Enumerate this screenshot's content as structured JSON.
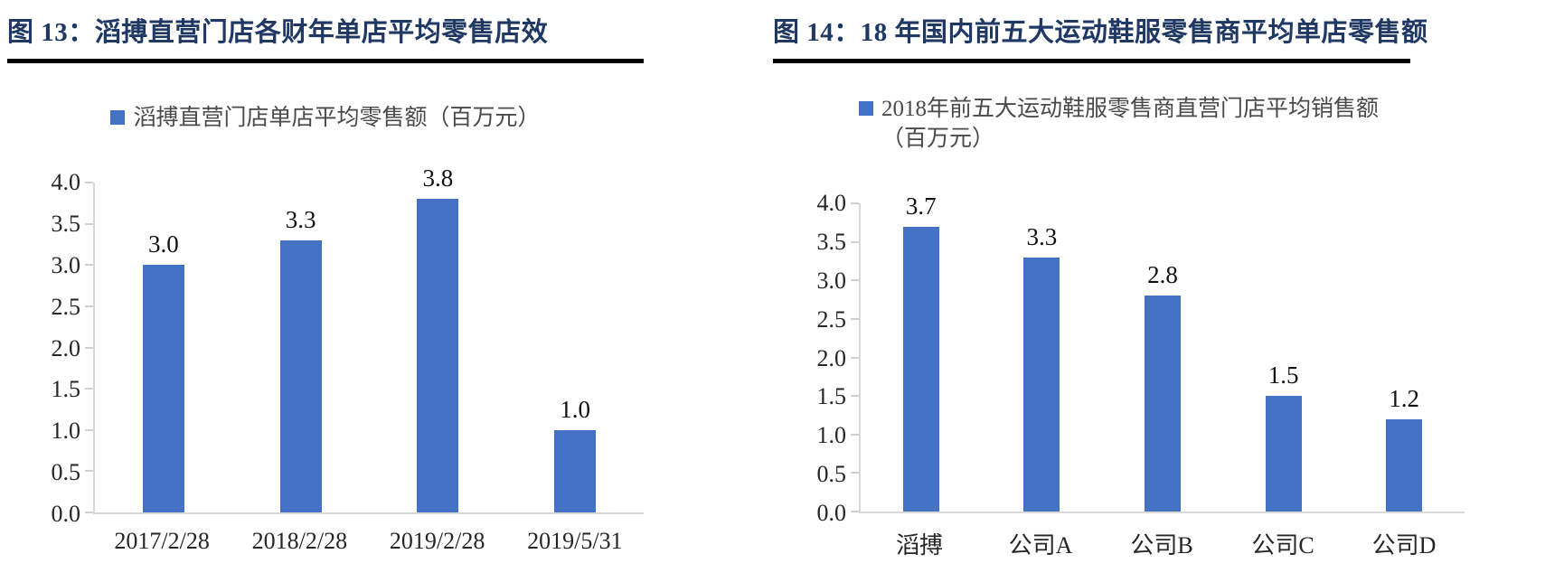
{
  "page": {
    "background": "#FFFFFF",
    "title_color": "#1F3864",
    "accent_blue": "#4472C4",
    "axis_color": "#D9D9D9"
  },
  "chart_data": [
    {
      "type": "bar",
      "title": "图 13：滔搏直营门店各财年单店平均零售店效",
      "legend": "滔搏直营门店单店平均零售额（百万元）",
      "legend_lines": [
        "滔搏直营门店单店平均零售额（百万元）"
      ],
      "categories": [
        "2017/2/28",
        "2018/2/28",
        "2019/2/28",
        "2019/5/31"
      ],
      "values": [
        3.0,
        3.3,
        3.8,
        1.0
      ],
      "labels": [
        "3.0",
        "3.3",
        "3.8",
        "1.0"
      ],
      "xlabel": "",
      "ylabel": "",
      "ylim": [
        0,
        4.0
      ],
      "ytick_step": 0.5,
      "yticks": [
        "4.0",
        "3.5",
        "3.0",
        "2.5",
        "2.0",
        "1.5",
        "1.0",
        "0.5",
        "0.0"
      ],
      "grid": false,
      "legend_position": "top-center",
      "bar_color": "#4472C4"
    },
    {
      "type": "bar",
      "title": "图 14：18 年国内前五大运动鞋服零售商平均单店零售额",
      "legend": "2018年前五大运动鞋服零售商直营门店平均销售额（百万元）",
      "legend_lines": [
        "2018年前五大运动鞋服零售商直营门店平均销售额",
        "（百万元）"
      ],
      "categories": [
        "滔搏",
        "公司A",
        "公司B",
        "公司C",
        "公司D"
      ],
      "values": [
        3.7,
        3.3,
        2.8,
        1.5,
        1.2
      ],
      "labels": [
        "3.7",
        "3.3",
        "2.8",
        "1.5",
        "1.2"
      ],
      "xlabel": "",
      "ylabel": "",
      "ylim": [
        0,
        4.0
      ],
      "ytick_step": 0.5,
      "yticks": [
        "4.0",
        "3.5",
        "3.0",
        "2.5",
        "2.0",
        "1.5",
        "1.0",
        "0.5",
        "0.0"
      ],
      "grid": false,
      "legend_position": "top-center",
      "bar_color": "#4472C4"
    }
  ]
}
